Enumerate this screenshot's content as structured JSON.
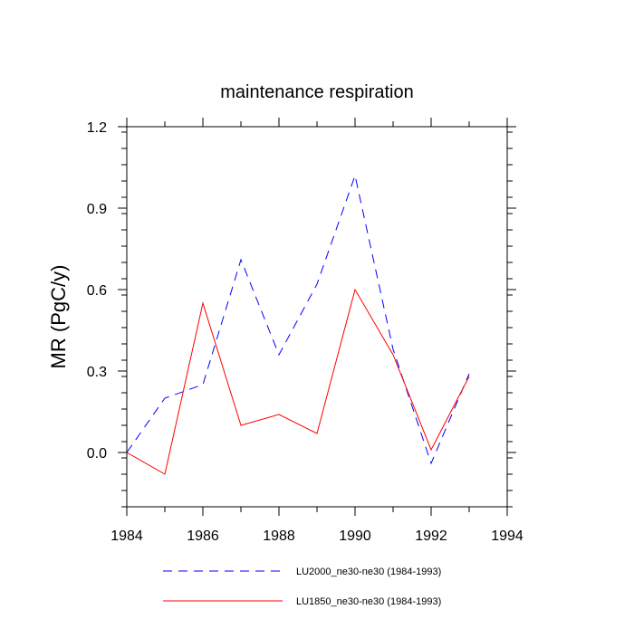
{
  "chart_data": {
    "type": "line",
    "title": "maintenance respiration",
    "xlabel": "",
    "ylabel": "MR  (PgC/y)",
    "xlim": [
      1984,
      1994
    ],
    "ylim": [
      -0.2,
      1.2
    ],
    "x_ticks": [
      1984,
      1986,
      1988,
      1990,
      1992,
      1994
    ],
    "x_tick_labels": [
      "1984",
      "1986",
      "1988",
      "1990",
      "1992",
      "1994"
    ],
    "y_ticks": [
      0.0,
      0.3,
      0.6,
      0.9,
      1.2
    ],
    "y_tick_labels": [
      "0.0",
      "0.3",
      "0.6",
      "0.9",
      "1.2"
    ],
    "grid": false,
    "legend_position": "bottom",
    "x": [
      1984,
      1985,
      1986,
      1987,
      1988,
      1989,
      1990,
      1991,
      1992,
      1993
    ],
    "series": [
      {
        "name": "LU2000_ne30-ne30 (1984-1993)",
        "color": "#0000ff",
        "dash": "dashed",
        "values": [
          0.0,
          0.2,
          0.25,
          0.71,
          0.36,
          0.62,
          1.02,
          0.38,
          -0.04,
          0.29
        ]
      },
      {
        "name": "LU1850_ne30-ne30 (1984-1993)",
        "color": "#ff0000",
        "dash": "solid",
        "values": [
          0.0,
          -0.08,
          0.55,
          0.1,
          0.14,
          0.07,
          0.6,
          0.36,
          0.01,
          0.28
        ]
      }
    ]
  }
}
